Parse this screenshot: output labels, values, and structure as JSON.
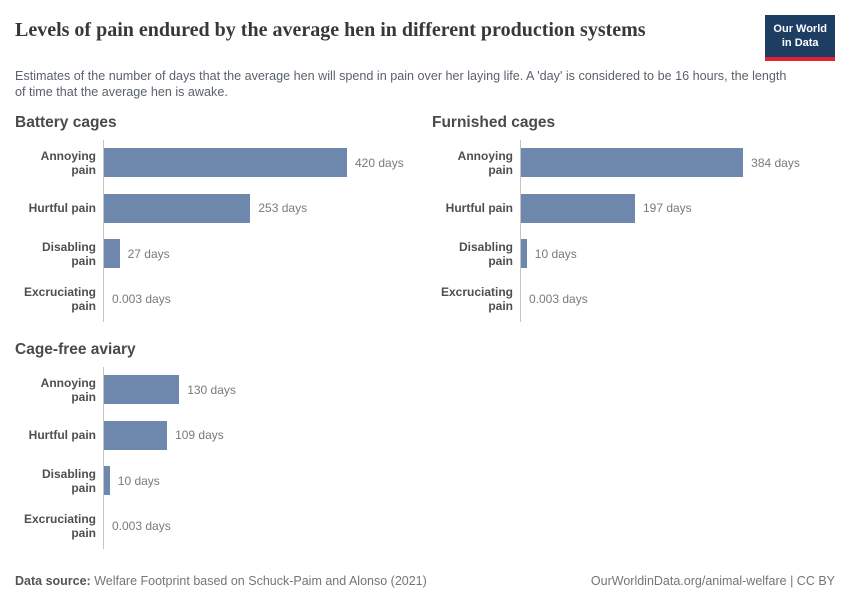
{
  "header": {
    "title": "Levels of pain endured by the average hen in different production systems",
    "subtitle": "Estimates of the number of days that the average hen will spend in pain over her laying life. A 'day' is considered to be 16 hours, the length of time that the average hen is awake.",
    "logo_text": "Our World\nin Data"
  },
  "chart_data": {
    "type": "bar",
    "orientation": "horizontal",
    "categories": [
      "Annoying pain",
      "Hurtful pain",
      "Disabling pain",
      "Excruciating pain"
    ],
    "unit": "days",
    "xlim": [
      0,
      420
    ],
    "max_value": 420,
    "grid": false,
    "legend": "none",
    "panels": [
      {
        "title": "Battery cages",
        "values": [
          420,
          253,
          27,
          0.003
        ],
        "value_labels": [
          "420 days",
          "253 days",
          "27 days",
          "0.003 days"
        ]
      },
      {
        "title": "Furnished cages",
        "values": [
          384,
          197,
          10,
          0.003
        ],
        "value_labels": [
          "384 days",
          "197 days",
          "10 days",
          "0.003 days"
        ]
      },
      {
        "title": "Cage-free aviary",
        "values": [
          130,
          109,
          10,
          0.003
        ],
        "value_labels": [
          "130 days",
          "109 days",
          "10 days",
          "0.003 days"
        ]
      }
    ],
    "colors": {
      "bar": "#6d87ad",
      "axis": "#c4c4c4",
      "logo_navy": "#1d3d63",
      "logo_red": "#e0232e"
    }
  },
  "footer": {
    "source_label": "Data source:",
    "source_text": " Welfare Footprint based on Schuck-Paim and Alonso (2021)",
    "right_text": "OurWorldinData.org/animal-welfare | CC BY"
  }
}
